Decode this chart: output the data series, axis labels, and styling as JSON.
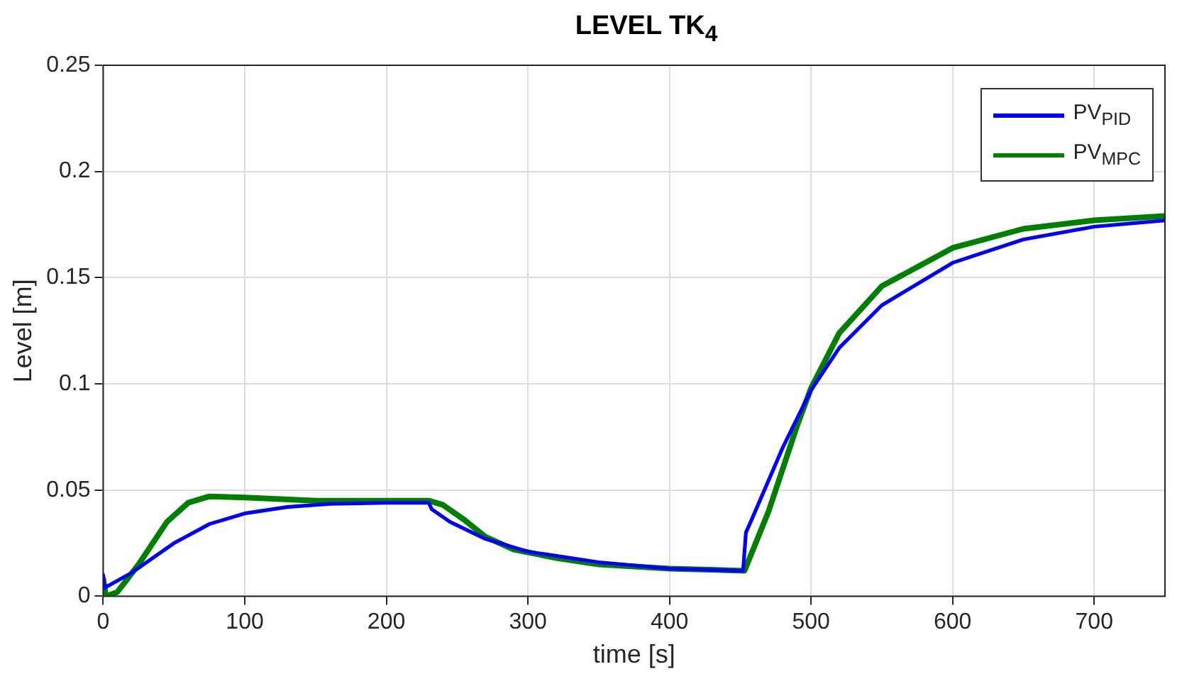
{
  "chart_data": {
    "type": "line",
    "title": "LEVEL TK$_{4}$",
    "xlabel": "time [s]",
    "ylabel": "Level [m]",
    "xlim": [
      0,
      750
    ],
    "xticks": [
      0,
      100,
      200,
      300,
      400,
      500,
      600,
      700
    ],
    "ylim": [
      0,
      0.25
    ],
    "yticks": [
      0,
      0.05,
      0.1,
      0.15,
      0.2,
      0.25
    ],
    "grid": true,
    "legend": "top right",
    "marker": "none",
    "line_style": "solid",
    "series": [
      {
        "name": "PV$_{PID}$",
        "color": "#0000ff",
        "x": [
          0,
          1,
          20,
          50,
          75,
          100,
          130,
          160,
          200,
          230,
          232,
          245,
          270,
          300,
          350,
          400,
          452,
          454,
          458,
          480,
          500,
          520,
          550,
          600,
          650,
          700,
          750
        ],
        "values": [
          0.01,
          0.004,
          0.011,
          0.025,
          0.034,
          0.039,
          0.042,
          0.0435,
          0.044,
          0.044,
          0.041,
          0.035,
          0.027,
          0.021,
          0.016,
          0.013,
          0.012,
          0.03,
          0.036,
          0.07,
          0.097,
          0.117,
          0.137,
          0.157,
          0.168,
          0.174,
          0.177
        ]
      },
      {
        "name": "PV$_{MPC}$",
        "color": "#008000",
        "x": [
          0,
          2,
          10,
          25,
          45,
          60,
          75,
          100,
          150,
          230,
          240,
          255,
          270,
          290,
          320,
          350,
          400,
          453,
          470,
          490,
          500,
          520,
          550,
          600,
          650,
          700,
          750
        ],
        "values": [
          0.008,
          0,
          0.002,
          0.015,
          0.035,
          0.044,
          0.047,
          0.0465,
          0.045,
          0.045,
          0.043,
          0.036,
          0.028,
          0.022,
          0.018,
          0.015,
          0.013,
          0.012,
          0.04,
          0.08,
          0.098,
          0.124,
          0.146,
          0.164,
          0.173,
          0.177,
          0.179
        ]
      }
    ]
  }
}
